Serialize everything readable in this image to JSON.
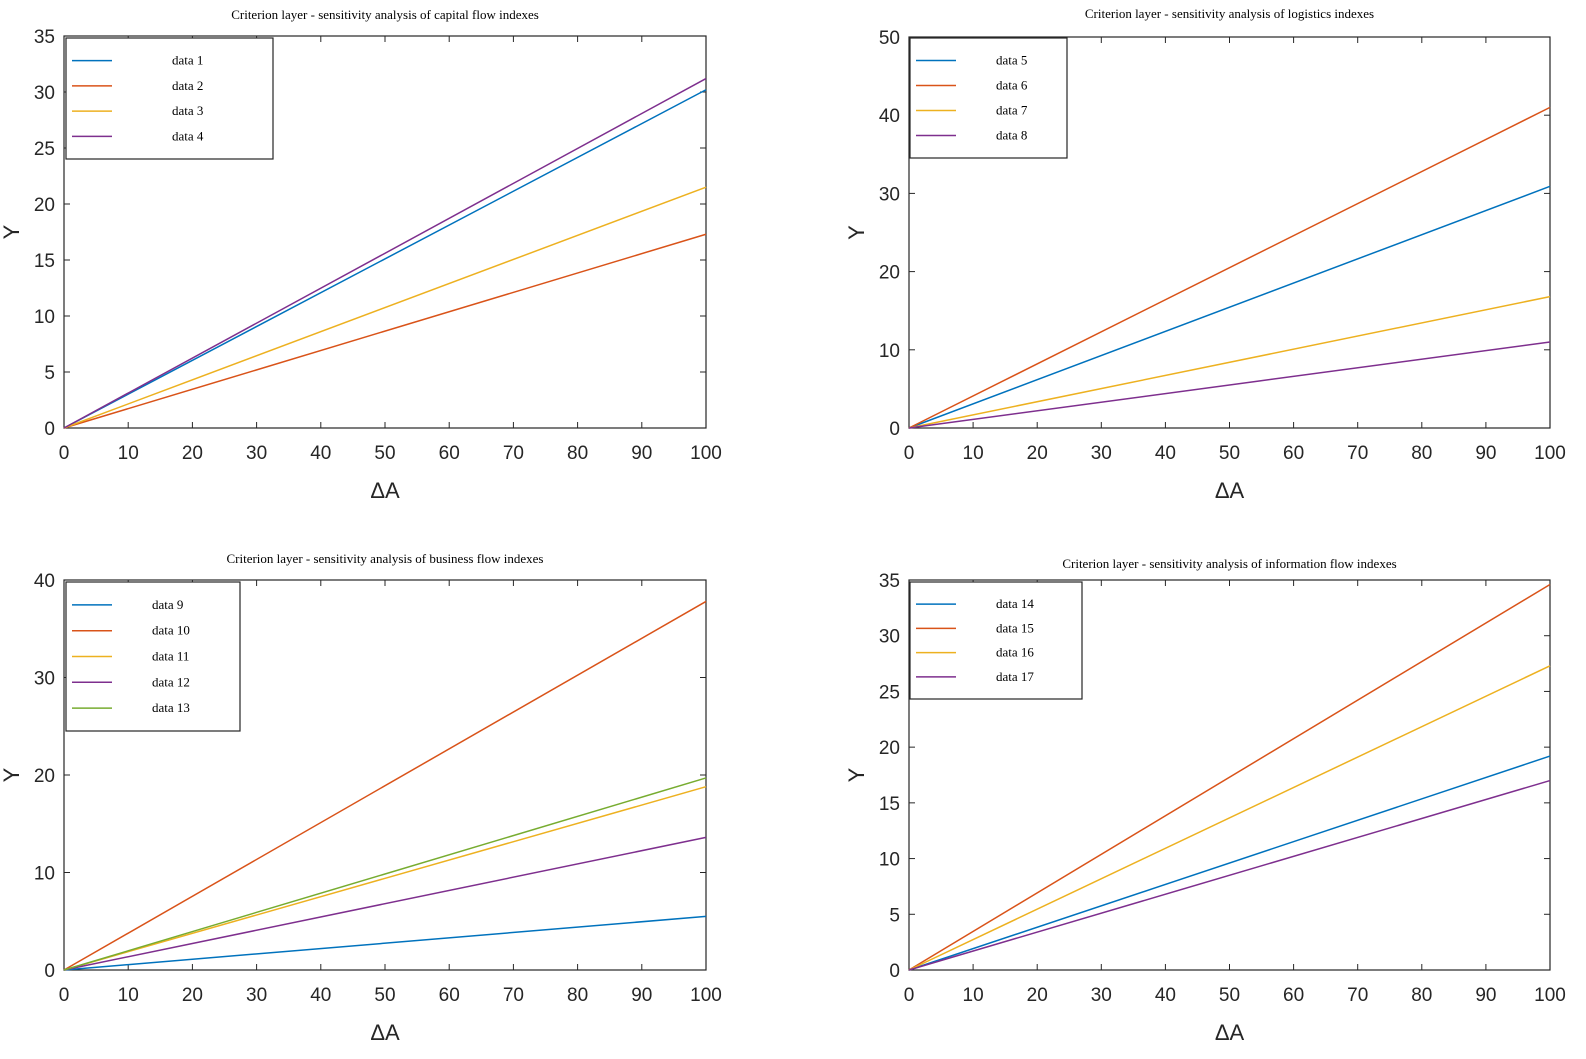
{
  "chart_data": [
    {
      "type": "line",
      "title": "Criterion layer - sensitivity analysis of capital flow indexes",
      "xlabel": "ΔA",
      "ylabel": "Y",
      "xlim": [
        0,
        100
      ],
      "ylim": [
        0,
        35
      ],
      "xticks": [
        0,
        10,
        20,
        30,
        40,
        50,
        60,
        70,
        80,
        90,
        100
      ],
      "yticks": [
        0,
        5,
        10,
        15,
        20,
        25,
        30,
        35
      ],
      "grid": false,
      "legend": "top-left",
      "series": [
        {
          "name": "data 1",
          "color": "#0072BD",
          "x": [
            0,
            100
          ],
          "y": [
            0,
            30.2
          ]
        },
        {
          "name": "data 2",
          "color": "#D95319",
          "x": [
            0,
            100
          ],
          "y": [
            0,
            17.3
          ]
        },
        {
          "name": "data 3",
          "color": "#EDB120",
          "x": [
            0,
            100
          ],
          "y": [
            0,
            21.5
          ]
        },
        {
          "name": "data 4",
          "color": "#7E2F8E",
          "x": [
            0,
            100
          ],
          "y": [
            0,
            31.2
          ]
        }
      ]
    },
    {
      "type": "line",
      "title": "Criterion layer - sensitivity analysis of logistics indexes",
      "xlabel": "ΔA",
      "ylabel": "Y",
      "xlim": [
        0,
        100
      ],
      "ylim": [
        0,
        50
      ],
      "xticks": [
        0,
        10,
        20,
        30,
        40,
        50,
        60,
        70,
        80,
        90,
        100
      ],
      "yticks": [
        0,
        10,
        20,
        30,
        40,
        50
      ],
      "grid": false,
      "legend": "top-left",
      "series": [
        {
          "name": "data 5",
          "color": "#0072BD",
          "x": [
            0,
            100
          ],
          "y": [
            0,
            30.9
          ]
        },
        {
          "name": "data 6",
          "color": "#D95319",
          "x": [
            0,
            100
          ],
          "y": [
            0,
            41.0
          ]
        },
        {
          "name": "data 7",
          "color": "#EDB120",
          "x": [
            0,
            100
          ],
          "y": [
            0,
            16.8
          ]
        },
        {
          "name": "data 8",
          "color": "#7E2F8E",
          "x": [
            0,
            100
          ],
          "y": [
            0,
            11.0
          ]
        }
      ]
    },
    {
      "type": "line",
      "title": "Criterion layer - sensitivity analysis of business flow indexes",
      "xlabel": "ΔA",
      "ylabel": "Y",
      "xlim": [
        0,
        100
      ],
      "ylim": [
        0,
        40
      ],
      "xticks": [
        0,
        10,
        20,
        30,
        40,
        50,
        60,
        70,
        80,
        90,
        100
      ],
      "yticks": [
        0,
        10,
        20,
        30,
        40
      ],
      "grid": false,
      "legend": "top-left",
      "series": [
        {
          "name": "data 9",
          "color": "#0072BD",
          "x": [
            0,
            100
          ],
          "y": [
            0,
            5.5
          ]
        },
        {
          "name": "data 10",
          "color": "#D95319",
          "x": [
            0,
            100
          ],
          "y": [
            0,
            37.8
          ]
        },
        {
          "name": "data 11",
          "color": "#EDB120",
          "x": [
            0,
            100
          ],
          "y": [
            0,
            18.8
          ]
        },
        {
          "name": "data 12",
          "color": "#7E2F8E",
          "x": [
            0,
            100
          ],
          "y": [
            0,
            13.6
          ]
        },
        {
          "name": "data 13",
          "color": "#77AC30",
          "x": [
            0,
            100
          ],
          "y": [
            0,
            19.7
          ]
        }
      ]
    },
    {
      "type": "line",
      "title": "Criterion layer - sensitivity analysis of information flow indexes",
      "xlabel": "ΔA",
      "ylabel": "Y",
      "xlim": [
        0,
        100
      ],
      "ylim": [
        0,
        35
      ],
      "xticks": [
        0,
        10,
        20,
        30,
        40,
        50,
        60,
        70,
        80,
        90,
        100
      ],
      "yticks": [
        0,
        5,
        10,
        15,
        20,
        25,
        30,
        35
      ],
      "grid": false,
      "legend": "top-left",
      "series": [
        {
          "name": "data 14",
          "color": "#0072BD",
          "x": [
            0,
            100
          ],
          "y": [
            0,
            19.2
          ]
        },
        {
          "name": "data 15",
          "color": "#D95319",
          "x": [
            0,
            100
          ],
          "y": [
            0,
            34.6
          ]
        },
        {
          "name": "data 16",
          "color": "#EDB120",
          "x": [
            0,
            100
          ],
          "y": [
            0,
            27.3
          ]
        },
        {
          "name": "data 17",
          "color": "#7E2F8E",
          "x": [
            0,
            100
          ],
          "y": [
            0,
            17.0
          ]
        }
      ]
    }
  ]
}
